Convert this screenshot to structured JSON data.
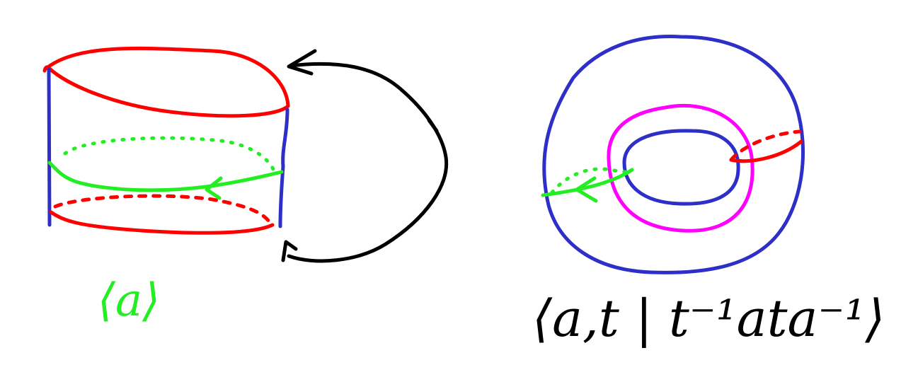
{
  "colors": {
    "red": "#ff0000",
    "blue": "#2e2ec8",
    "green": "#22ee22",
    "magenta": "#ff00ff",
    "black": "#000000"
  },
  "labels": {
    "cylinder": "⟨a⟩",
    "torus": "⟨a,t | t⁻¹ata⁻¹⟩"
  }
}
